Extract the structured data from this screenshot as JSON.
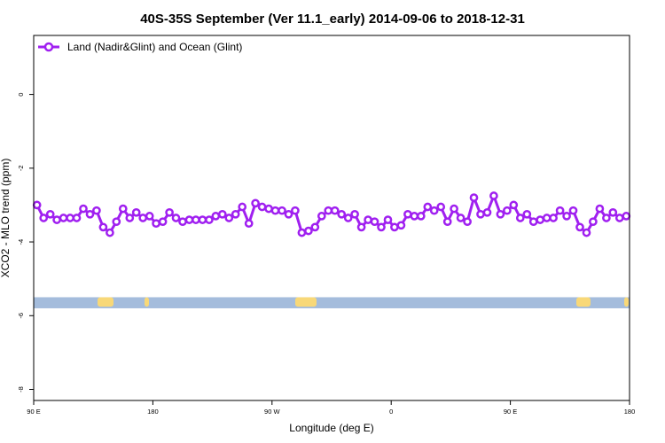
{
  "chart_data": {
    "type": "line",
    "title": "40S-35S September (Ver 11.1_early)   2014-09-06 to 2018-12-31",
    "xlabel": "Longitude (deg E)",
    "ylabel": "XCO2 - MLO trend (ppm)",
    "xlim": [
      90,
      540
    ],
    "ylim": [
      -8.3,
      1.6
    ],
    "x_ticks": [
      {
        "value": 90,
        "label": "90 E"
      },
      {
        "value": 180,
        "label": "180"
      },
      {
        "value": 270,
        "label": "90 W"
      },
      {
        "value": 360,
        "label": "0"
      },
      {
        "value": 450,
        "label": "90 E"
      },
      {
        "value": 540,
        "label": "180"
      }
    ],
    "y_ticks": [
      {
        "value": 0,
        "label": "0"
      },
      {
        "value": -2,
        "label": "-2"
      },
      {
        "value": -4,
        "label": "-4"
      },
      {
        "value": -6,
        "label": "-6"
      },
      {
        "value": -8,
        "label": "-8"
      }
    ],
    "legend_position": "top-left",
    "grid": false,
    "series": [
      {
        "name": "Land (Nadir&Glint) and Ocean (Glint)",
        "color": "#a020f0",
        "marker": "open-circle",
        "x": [
          92.5,
          97.5,
          102.5,
          107.5,
          112.5,
          117.5,
          122.5,
          127.5,
          132.5,
          137.5,
          142.5,
          147.5,
          152.5,
          157.5,
          162.5,
          167.5,
          172.5,
          177.5,
          182.5,
          187.5,
          192.5,
          197.5,
          202.5,
          207.5,
          212.5,
          217.5,
          222.5,
          227.5,
          232.5,
          237.5,
          242.5,
          247.5,
          252.5,
          257.5,
          262.5,
          267.5,
          272.5,
          277.5,
          282.5,
          287.5,
          292.5,
          297.5,
          302.5,
          307.5,
          312.5,
          317.5,
          322.5,
          327.5,
          332.5,
          337.5,
          342.5,
          347.5,
          352.5,
          357.5,
          362.5,
          367.5,
          372.5,
          377.5,
          382.5,
          387.5,
          392.5,
          397.5,
          402.5,
          407.5,
          412.5,
          417.5,
          422.5,
          427.5,
          432.5,
          437.5,
          442.5,
          447.5,
          452.5,
          457.5,
          462.5,
          467.5,
          472.5,
          477.5,
          482.5,
          487.5,
          492.5,
          497.5,
          502.5,
          507.5,
          512.5,
          517.5,
          522.5,
          527.5,
          532.5,
          537.5
        ],
        "y": [
          -3.0,
          -3.35,
          -3.25,
          -3.4,
          -3.35,
          -3.35,
          -3.35,
          -3.1,
          -3.25,
          -3.15,
          -3.6,
          -3.75,
          -3.45,
          -3.1,
          -3.35,
          -3.2,
          -3.35,
          -3.3,
          -3.5,
          -3.45,
          -3.2,
          -3.35,
          -3.45,
          -3.4,
          -3.4,
          -3.4,
          -3.4,
          -3.3,
          -3.25,
          -3.35,
          -3.25,
          -3.05,
          -3.5,
          -2.95,
          -3.05,
          -3.1,
          -3.15,
          -3.15,
          -3.25,
          -3.15,
          -3.75,
          -3.7,
          -3.6,
          -3.3,
          -3.15,
          -3.15,
          -3.25,
          -3.35,
          -3.25,
          -3.6,
          -3.4,
          -3.45,
          -3.6,
          -3.4,
          -3.6,
          -3.55,
          -3.25,
          -3.3,
          -3.3,
          -3.05,
          -3.15,
          -3.05,
          -3.45,
          -3.1,
          -3.35,
          -3.45,
          -2.8,
          -3.25,
          -3.2,
          -2.75,
          -3.25,
          -3.15,
          -3.0,
          -3.35,
          -3.25,
          -3.45,
          -3.4,
          -3.35,
          -3.35,
          -3.15,
          -3.3,
          -3.15,
          -3.6,
          -3.75,
          -3.45,
          -3.1,
          -3.35,
          -3.2,
          -3.35,
          -3.3
        ]
      }
    ],
    "land_band": {
      "ymin": -5.8,
      "ymax": -5.5,
      "ocean_color": "#a4bcdc",
      "land_color": "#f8d878"
    }
  }
}
